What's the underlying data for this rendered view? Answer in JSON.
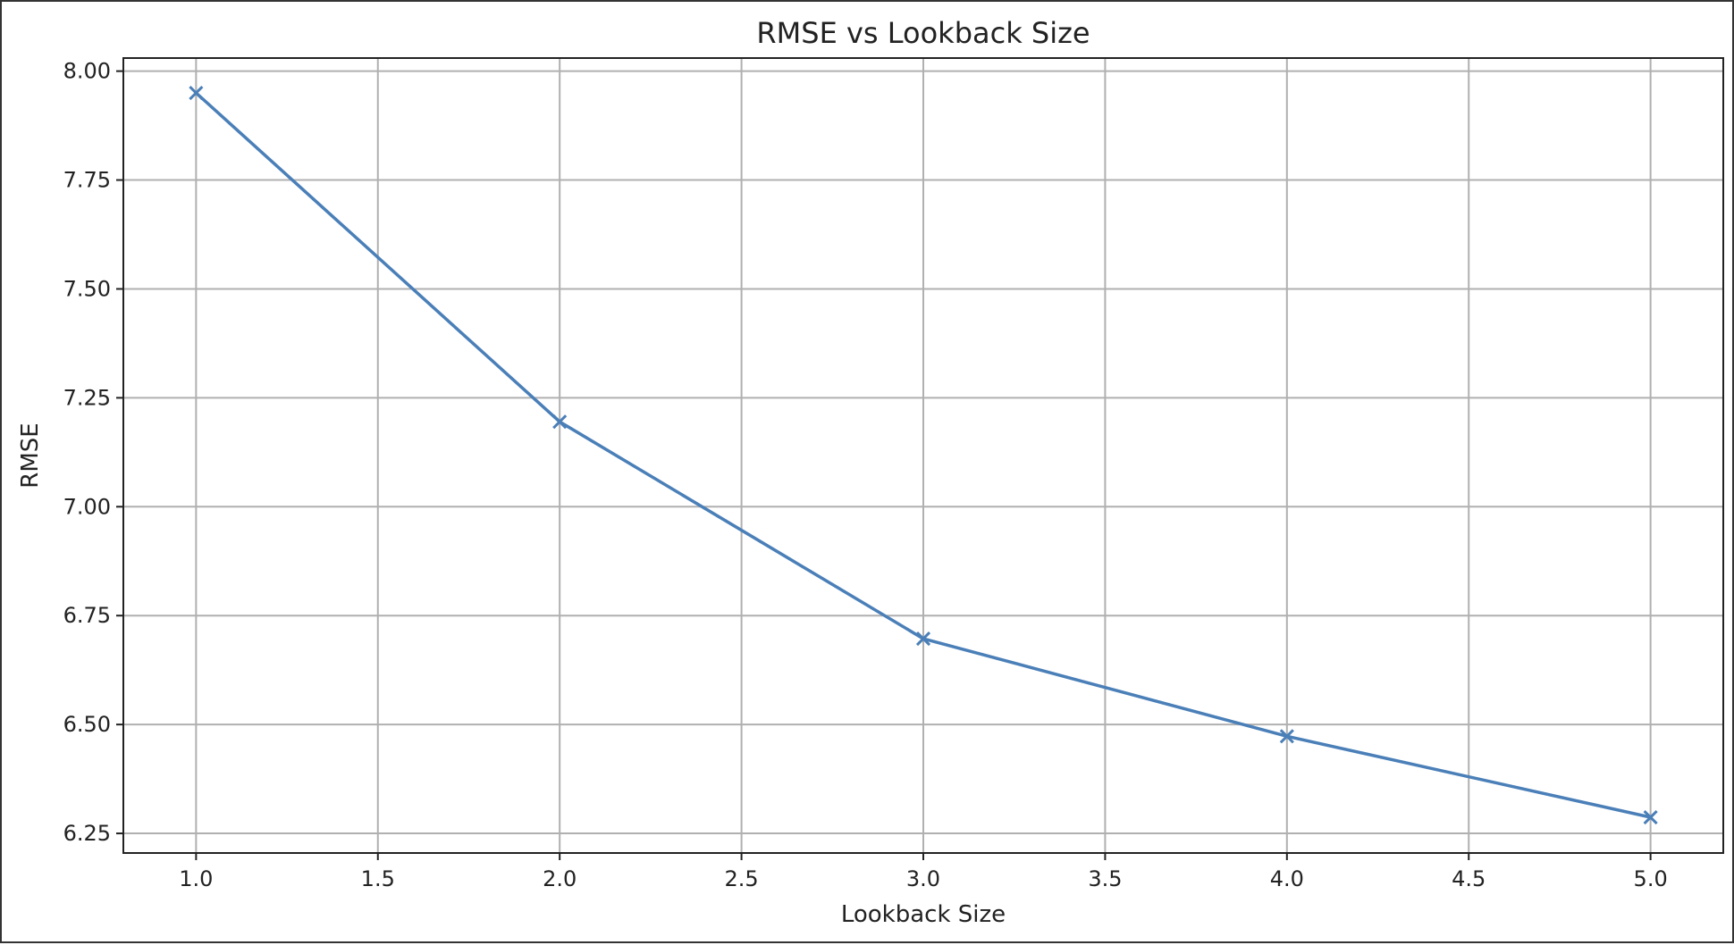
{
  "chart_data": {
    "type": "line",
    "title": "RMSE vs Lookback Size",
    "xlabel": "Lookback Size",
    "ylabel": "RMSE",
    "xlim": [
      0.8,
      5.2
    ],
    "ylim": [
      6.205,
      8.03
    ],
    "x_ticks": [
      1.0,
      1.5,
      2.0,
      2.5,
      3.0,
      3.5,
      4.0,
      4.5,
      5.0
    ],
    "x_tick_labels": [
      "1.0",
      "1.5",
      "2.0",
      "2.5",
      "3.0",
      "3.5",
      "4.0",
      "4.5",
      "5.0"
    ],
    "y_ticks": [
      6.25,
      6.5,
      6.75,
      7.0,
      7.25,
      7.5,
      7.75,
      8.0
    ],
    "y_tick_labels": [
      "6.25",
      "6.50",
      "6.75",
      "7.00",
      "7.25",
      "7.50",
      "7.75",
      "8.00"
    ],
    "grid": true,
    "series": [
      {
        "x": [
          1,
          2,
          3,
          4,
          5
        ],
        "y": [
          7.95,
          7.195,
          6.697,
          6.473,
          6.287
        ],
        "color": "#4a7fb8",
        "marker": "x"
      }
    ]
  }
}
